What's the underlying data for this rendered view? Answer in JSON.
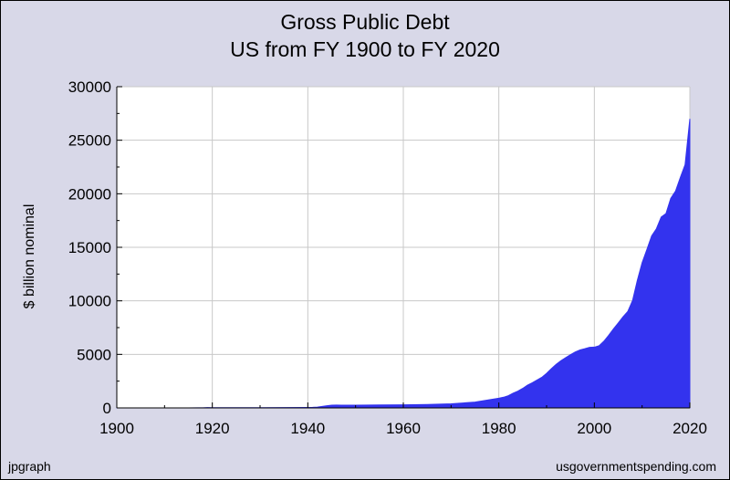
{
  "chart_data": {
    "type": "area",
    "title": "Gross Public Debt",
    "subtitle": "US from FY 1900 to FY 2020",
    "xlabel": "",
    "ylabel": "$ billion nominal",
    "xlim": [
      1900,
      2020
    ],
    "ylim": [
      0,
      30000
    ],
    "x_ticks": [
      "1900",
      "1920",
      "1940",
      "1960",
      "1980",
      "2000",
      "2020"
    ],
    "y_ticks": [
      "0",
      "5000",
      "10000",
      "15000",
      "20000",
      "25000",
      "30000"
    ],
    "grid": true,
    "fill_color": "#3333ee",
    "x": [
      1900,
      1905,
      1910,
      1915,
      1917,
      1918,
      1919,
      1920,
      1925,
      1930,
      1935,
      1940,
      1941,
      1942,
      1943,
      1944,
      1945,
      1946,
      1947,
      1950,
      1955,
      1960,
      1965,
      1970,
      1975,
      1980,
      1981,
      1982,
      1983,
      1984,
      1985,
      1986,
      1987,
      1988,
      1989,
      1990,
      1991,
      1992,
      1993,
      1994,
      1995,
      1996,
      1997,
      1998,
      1999,
      2000,
      2001,
      2002,
      2003,
      2004,
      2005,
      2006,
      2007,
      2008,
      2009,
      2010,
      2011,
      2012,
      2013,
      2014,
      2015,
      2016,
      2017,
      2018,
      2019,
      2020
    ],
    "values": [
      2,
      2,
      3,
      3,
      6,
      12,
      27,
      26,
      21,
      16,
      29,
      43,
      49,
      72,
      137,
      201,
      259,
      269,
      258,
      257,
      274,
      291,
      322,
      381,
      542,
      908,
      998,
      1142,
      1377,
      1572,
      1823,
      2125,
      2350,
      2602,
      2857,
      3233,
      3665,
      4065,
      4411,
      4693,
      4974,
      5225,
      5413,
      5526,
      5656,
      5674,
      5807,
      6228,
      6783,
      7379,
      7933,
      8507,
      9008,
      10025,
      11910,
      13562,
      14790,
      16066,
      16738,
      17824,
      18151,
      19573,
      20245,
      21516,
      22719,
      27000
    ]
  },
  "footer": {
    "left": "jpgraph",
    "right": "usgovernmentspending.com"
  }
}
